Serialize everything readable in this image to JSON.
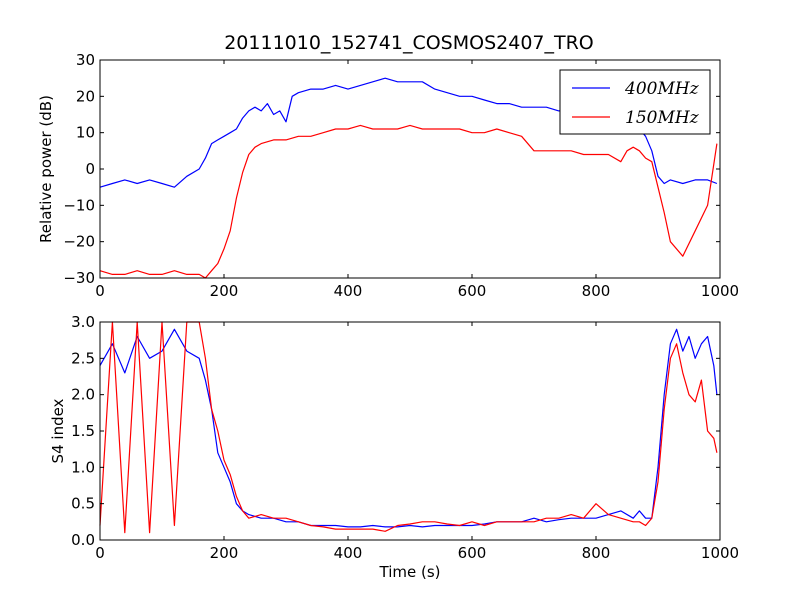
{
  "title": "20111010_152741_COSMOS2407_TRO",
  "colors": {
    "series_400": "#0000ff",
    "series_150": "#ff0000",
    "axes": "#000000",
    "background": "#ffffff"
  },
  "chart_data": [
    {
      "type": "line",
      "title": "20111010_152741_COSMOS2407_TRO",
      "xlabel": "",
      "ylabel": "Relative power (dB)",
      "xlim": [
        0,
        1000
      ],
      "ylim": [
        -30,
        30
      ],
      "x_ticks": [
        0,
        200,
        400,
        600,
        800,
        1000
      ],
      "y_ticks": [
        -30,
        -20,
        -10,
        0,
        10,
        20,
        30
      ],
      "x_tick_labels": [
        "0",
        "200",
        "400",
        "600",
        "800",
        "1000"
      ],
      "y_tick_labels": [
        "−30",
        "−20",
        "−10",
        "0",
        "10",
        "20",
        "30"
      ],
      "grid": false,
      "legend_placement": "top-right",
      "series": [
        {
          "name": "400MHz",
          "legend_label": "400MHz",
          "x": [
            0,
            20,
            40,
            60,
            80,
            100,
            120,
            140,
            160,
            170,
            180,
            190,
            200,
            210,
            220,
            230,
            240,
            250,
            260,
            270,
            280,
            290,
            300,
            310,
            320,
            340,
            360,
            380,
            400,
            420,
            440,
            460,
            480,
            500,
            520,
            540,
            560,
            580,
            600,
            620,
            640,
            660,
            680,
            700,
            720,
            740,
            760,
            780,
            800,
            820,
            840,
            850,
            860,
            870,
            880,
            890,
            900,
            910,
            920,
            940,
            960,
            980,
            995
          ],
          "y": [
            -5,
            -4,
            -3,
            -4,
            -3,
            -4,
            -5,
            -2,
            0,
            3,
            7,
            8,
            9,
            10,
            11,
            14,
            16,
            17,
            16,
            18,
            15,
            16,
            13,
            20,
            21,
            22,
            22,
            23,
            22,
            23,
            24,
            25,
            24,
            24,
            24,
            22,
            21,
            20,
            20,
            19,
            18,
            18,
            17,
            17,
            17,
            16,
            16,
            15,
            14,
            13,
            13,
            12,
            12,
            11,
            9,
            5,
            -2,
            -4,
            -3,
            -4,
            -3,
            -3,
            -4
          ]
        },
        {
          "name": "150MHz",
          "legend_label": "150MHz",
          "x": [
            0,
            20,
            40,
            60,
            80,
            100,
            120,
            140,
            160,
            170,
            180,
            190,
            200,
            210,
            220,
            230,
            240,
            250,
            260,
            280,
            300,
            320,
            340,
            360,
            380,
            400,
            420,
            440,
            460,
            480,
            500,
            520,
            540,
            560,
            580,
            600,
            620,
            640,
            660,
            680,
            700,
            720,
            740,
            760,
            780,
            800,
            820,
            840,
            850,
            860,
            870,
            880,
            890,
            900,
            910,
            920,
            940,
            960,
            980,
            995
          ],
          "y": [
            -28,
            -29,
            -29,
            -28,
            -29,
            -29,
            -28,
            -29,
            -29,
            -30,
            -28,
            -26,
            -22,
            -17,
            -8,
            -1,
            4,
            6,
            7,
            8,
            8,
            9,
            9,
            10,
            11,
            11,
            12,
            11,
            11,
            11,
            12,
            11,
            11,
            11,
            11,
            10,
            10,
            11,
            10,
            9,
            5,
            5,
            5,
            5,
            4,
            4,
            4,
            2,
            5,
            6,
            5,
            3,
            2,
            -5,
            -12,
            -20,
            -24,
            -17,
            -10,
            7
          ]
        }
      ]
    },
    {
      "type": "line",
      "title": "",
      "xlabel": "Time (s)",
      "ylabel": "S4 index",
      "xlim": [
        0,
        1000
      ],
      "ylim": [
        0.0,
        3.0
      ],
      "x_ticks": [
        0,
        200,
        400,
        600,
        800,
        1000
      ],
      "y_ticks": [
        0.0,
        0.5,
        1.0,
        1.5,
        2.0,
        2.5,
        3.0
      ],
      "x_tick_labels": [
        "0",
        "200",
        "400",
        "600",
        "800",
        "1000"
      ],
      "y_tick_labels": [
        "0.0",
        "0.5",
        "1.0",
        "1.5",
        "2.0",
        "2.5",
        "3.0"
      ],
      "grid": false,
      "series": [
        {
          "name": "400MHz",
          "x": [
            0,
            20,
            40,
            60,
            80,
            100,
            120,
            140,
            160,
            170,
            180,
            190,
            200,
            210,
            220,
            230,
            240,
            260,
            280,
            300,
            320,
            340,
            360,
            380,
            400,
            420,
            440,
            460,
            480,
            500,
            520,
            540,
            560,
            580,
            600,
            620,
            640,
            660,
            680,
            700,
            720,
            740,
            760,
            780,
            800,
            820,
            840,
            860,
            870,
            880,
            890,
            900,
            910,
            920,
            930,
            940,
            950,
            960,
            970,
            980,
            990,
            995
          ],
          "y": [
            2.4,
            2.7,
            2.3,
            2.8,
            2.5,
            2.6,
            2.9,
            2.6,
            2.5,
            2.2,
            1.8,
            1.2,
            1.0,
            0.8,
            0.5,
            0.4,
            0.35,
            0.3,
            0.3,
            0.25,
            0.25,
            0.2,
            0.2,
            0.2,
            0.18,
            0.18,
            0.2,
            0.18,
            0.18,
            0.2,
            0.18,
            0.2,
            0.2,
            0.2,
            0.2,
            0.22,
            0.25,
            0.25,
            0.25,
            0.3,
            0.25,
            0.28,
            0.3,
            0.3,
            0.3,
            0.35,
            0.4,
            0.3,
            0.4,
            0.3,
            0.3,
            1.0,
            2.0,
            2.7,
            2.9,
            2.6,
            2.8,
            2.5,
            2.7,
            2.8,
            2.4,
            2.0
          ]
        },
        {
          "name": "150MHz",
          "x": [
            0,
            20,
            40,
            60,
            80,
            100,
            120,
            140,
            160,
            170,
            180,
            190,
            200,
            210,
            220,
            230,
            240,
            260,
            280,
            300,
            320,
            340,
            360,
            380,
            400,
            420,
            440,
            460,
            480,
            500,
            520,
            540,
            560,
            580,
            600,
            620,
            640,
            660,
            680,
            700,
            720,
            740,
            760,
            780,
            800,
            820,
            840,
            860,
            870,
            880,
            890,
            900,
            910,
            920,
            930,
            940,
            950,
            960,
            970,
            980,
            990,
            995
          ],
          "y": [
            0.2,
            3.0,
            0.1,
            3.0,
            0.1,
            3.0,
            0.2,
            3.0,
            3.0,
            2.5,
            1.8,
            1.5,
            1.1,
            0.9,
            0.6,
            0.4,
            0.3,
            0.35,
            0.3,
            0.3,
            0.25,
            0.2,
            0.18,
            0.15,
            0.15,
            0.15,
            0.15,
            0.12,
            0.2,
            0.22,
            0.25,
            0.25,
            0.22,
            0.2,
            0.25,
            0.2,
            0.25,
            0.25,
            0.25,
            0.25,
            0.3,
            0.3,
            0.35,
            0.3,
            0.5,
            0.35,
            0.3,
            0.25,
            0.25,
            0.2,
            0.3,
            0.8,
            1.8,
            2.5,
            2.7,
            2.3,
            2.0,
            1.9,
            2.2,
            1.5,
            1.4,
            1.2
          ]
        }
      ]
    }
  ]
}
